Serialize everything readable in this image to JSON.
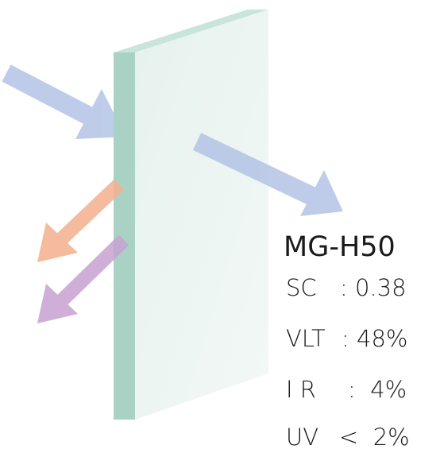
{
  "product": {
    "name": "MG-H50",
    "specs": [
      {
        "label": "SC",
        "value": ": 0.38"
      },
      {
        "label": "VLT",
        "value": ": 48%"
      },
      {
        "label": "I R",
        "value": ":  4%"
      },
      {
        "label": "UV",
        "value": "<  2%"
      }
    ]
  }
}
